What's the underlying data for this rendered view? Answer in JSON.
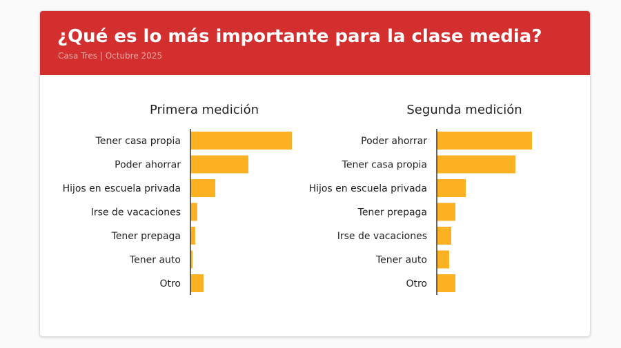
{
  "header": {
    "title": "¿Qué es lo más importante para la clase media?",
    "subtitle": "Casa Tres | Octubre 2025"
  },
  "colors": {
    "header": "#d32f2f",
    "bar": "#fbb122",
    "axis": "#333333"
  },
  "chart_data": [
    {
      "type": "bar",
      "orientation": "horizontal",
      "title": "Primera medición",
      "categories": [
        "Tener casa propia",
        "Poder ahorrar",
        "Hijos en escuela privada",
        "Irse de vacaciones",
        "Tener prepaga",
        "Tener auto",
        "Otro"
      ],
      "values": [
        49,
        28,
        12,
        3.3,
        2.3,
        1,
        6.3
      ],
      "xlim": [
        0,
        50
      ],
      "grid": false,
      "note_values": "relative, no axis printed"
    },
    {
      "type": "bar",
      "orientation": "horizontal",
      "title": "Segunda medición",
      "categories": [
        "Poder ahorrar",
        "Tener casa propia",
        "Hijos en escuela privada",
        "Tener prepaga",
        "Irse de vacaciones",
        "Tener auto",
        "Otro"
      ],
      "values": [
        46,
        38,
        14,
        9,
        7,
        6,
        9
      ],
      "xlim": [
        0,
        50
      ],
      "grid": false
    }
  ]
}
